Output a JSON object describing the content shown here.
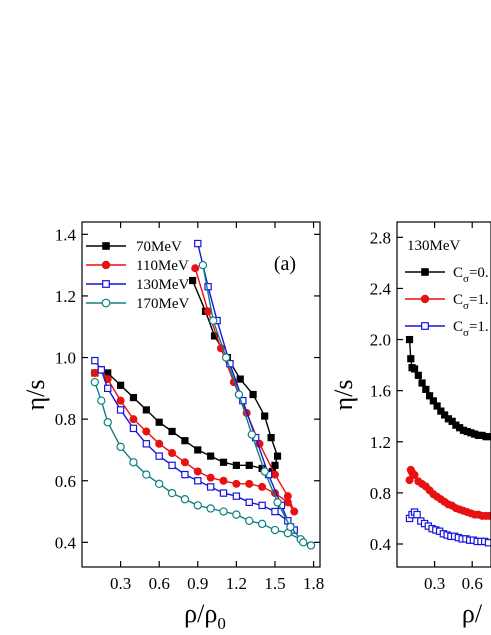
{
  "chart_data": [
    {
      "type": "line",
      "panel_label": "(a)",
      "xlabel": "ρ/ρ",
      "xlabel_sub": "0",
      "ylabel": "η/s",
      "xlim": [
        0.0,
        1.85
      ],
      "ylim": [
        0.32,
        1.44
      ],
      "xticks": [
        0.3,
        0.6,
        0.9,
        1.2,
        1.5,
        1.8
      ],
      "xtick_labels": [
        "0.3",
        "0.6",
        "0.9",
        "1.2",
        "1.5",
        "1.8"
      ],
      "yticks": [
        0.4,
        0.6,
        0.8,
        1.0,
        1.2,
        1.4
      ],
      "ytick_labels": [
        "0.4",
        "0.6",
        "0.8",
        "1.0",
        "1.2",
        "1.4"
      ],
      "legend_position": "top-left",
      "series": [
        {
          "name": "70MeV",
          "color": "#000000",
          "marker": "square-filled",
          "x": [
            0.1,
            0.15,
            0.2,
            0.3,
            0.4,
            0.5,
            0.6,
            0.7,
            0.8,
            0.9,
            1.0,
            1.1,
            1.2,
            1.3,
            1.4,
            1.48,
            1.5,
            1.52,
            1.47,
            1.42,
            1.33,
            1.23,
            1.13,
            1.03,
            0.96,
            0.86
          ],
          "y": [
            0.95,
            0.96,
            0.95,
            0.91,
            0.87,
            0.83,
            0.79,
            0.76,
            0.73,
            0.7,
            0.68,
            0.66,
            0.65,
            0.65,
            0.64,
            0.63,
            0.65,
            0.68,
            0.74,
            0.81,
            0.88,
            0.93,
            1.0,
            1.07,
            1.15,
            1.25
          ]
        },
        {
          "name": "110MeV",
          "color": "#e81010",
          "marker": "circle-filled",
          "x": [
            0.1,
            0.15,
            0.2,
            0.3,
            0.4,
            0.5,
            0.6,
            0.7,
            0.8,
            0.9,
            1.0,
            1.1,
            1.2,
            1.3,
            1.4,
            1.5,
            1.6,
            1.65,
            1.6,
            1.5,
            1.38,
            1.28,
            1.18,
            1.08,
            0.98,
            0.88
          ],
          "y": [
            0.95,
            0.96,
            0.93,
            0.86,
            0.8,
            0.76,
            0.72,
            0.69,
            0.66,
            0.63,
            0.61,
            0.6,
            0.59,
            0.59,
            0.58,
            0.56,
            0.53,
            0.5,
            0.55,
            0.62,
            0.72,
            0.82,
            0.92,
            1.03,
            1.15,
            1.29
          ]
        },
        {
          "name": "130MeV",
          "color": "#1515e0",
          "marker": "square-open",
          "x": [
            0.1,
            0.15,
            0.2,
            0.3,
            0.4,
            0.5,
            0.6,
            0.7,
            0.8,
            0.9,
            1.0,
            1.1,
            1.2,
            1.3,
            1.4,
            1.5,
            1.6,
            1.65,
            1.62,
            1.55,
            1.45,
            1.35,
            1.25,
            1.15,
            1.05,
            0.98,
            0.9
          ],
          "y": [
            0.99,
            0.96,
            0.9,
            0.83,
            0.77,
            0.72,
            0.68,
            0.65,
            0.62,
            0.6,
            0.58,
            0.56,
            0.55,
            0.53,
            0.52,
            0.5,
            0.47,
            0.44,
            0.45,
            0.52,
            0.62,
            0.74,
            0.86,
            0.98,
            1.12,
            1.23,
            1.37
          ]
        },
        {
          "name": "170MeV",
          "color": "#108080",
          "marker": "circle-open",
          "x": [
            0.1,
            0.15,
            0.2,
            0.3,
            0.4,
            0.5,
            0.6,
            0.7,
            0.8,
            0.9,
            1.0,
            1.1,
            1.2,
            1.3,
            1.4,
            1.5,
            1.6,
            1.7,
            1.78,
            1.72,
            1.62,
            1.52,
            1.42,
            1.32,
            1.22,
            1.12,
            1.02,
            0.94
          ],
          "y": [
            0.92,
            0.86,
            0.79,
            0.71,
            0.66,
            0.62,
            0.59,
            0.56,
            0.54,
            0.52,
            0.51,
            0.5,
            0.49,
            0.47,
            0.46,
            0.44,
            0.43,
            0.41,
            0.39,
            0.4,
            0.45,
            0.53,
            0.63,
            0.75,
            0.88,
            1.0,
            1.12,
            1.3
          ]
        }
      ]
    },
    {
      "type": "line",
      "legend_title": "130MeV",
      "xlabel": "ρ/",
      "ylabel": "η/s",
      "xlim": [
        0.0,
        0.75
      ],
      "ylim": [
        0.22,
        2.92
      ],
      "xticks": [
        0.3,
        0.6
      ],
      "xtick_labels": [
        "0.3",
        "0.6"
      ],
      "yticks": [
        0.4,
        0.8,
        1.2,
        1.6,
        2.0,
        2.4,
        2.8
      ],
      "ytick_labels": [
        "0.4",
        "0.8",
        "1.2",
        "1.6",
        "2.0",
        "2.4",
        "2.8"
      ],
      "legend_position": "top-left",
      "series": [
        {
          "name": "C",
          "name_sub": "σ",
          "name_suffix": "=0.",
          "color": "#000000",
          "marker": "square-filled",
          "x": [
            0.1,
            0.11,
            0.12,
            0.14,
            0.17,
            0.2,
            0.23,
            0.26,
            0.29,
            0.32,
            0.35,
            0.38,
            0.41,
            0.44,
            0.47,
            0.5,
            0.53,
            0.56,
            0.59,
            0.62,
            0.65,
            0.68,
            0.71,
            0.74
          ],
          "y": [
            2.0,
            1.85,
            1.78,
            1.77,
            1.72,
            1.66,
            1.61,
            1.56,
            1.52,
            1.48,
            1.44,
            1.41,
            1.38,
            1.36,
            1.33,
            1.31,
            1.29,
            1.28,
            1.27,
            1.26,
            1.25,
            1.25,
            1.24,
            1.24
          ]
        },
        {
          "name": "C",
          "name_sub": "σ",
          "name_suffix": "=1.",
          "color": "#e81010",
          "marker": "circle-filled",
          "x": [
            0.1,
            0.11,
            0.12,
            0.14,
            0.17,
            0.2,
            0.23,
            0.26,
            0.29,
            0.32,
            0.35,
            0.38,
            0.41,
            0.44,
            0.47,
            0.5,
            0.53,
            0.56,
            0.59,
            0.62,
            0.65,
            0.68,
            0.71,
            0.74
          ],
          "y": [
            0.9,
            0.98,
            0.96,
            0.94,
            0.89,
            0.87,
            0.85,
            0.82,
            0.79,
            0.77,
            0.75,
            0.73,
            0.71,
            0.7,
            0.68,
            0.67,
            0.66,
            0.65,
            0.64,
            0.63,
            0.63,
            0.62,
            0.62,
            0.62
          ]
        },
        {
          "name": "C",
          "name_sub": "σ",
          "name_suffix": "=1.",
          "color": "#1515e0",
          "marker": "square-open",
          "x": [
            0.1,
            0.12,
            0.14,
            0.16,
            0.19,
            0.22,
            0.25,
            0.28,
            0.31,
            0.34,
            0.37,
            0.4,
            0.43,
            0.46,
            0.49,
            0.52,
            0.55,
            0.58,
            0.61,
            0.64,
            0.67,
            0.7,
            0.73
          ],
          "y": [
            0.6,
            0.63,
            0.65,
            0.63,
            0.58,
            0.56,
            0.54,
            0.52,
            0.51,
            0.5,
            0.48,
            0.47,
            0.46,
            0.46,
            0.45,
            0.44,
            0.44,
            0.43,
            0.43,
            0.42,
            0.42,
            0.42,
            0.41
          ]
        }
      ]
    }
  ]
}
